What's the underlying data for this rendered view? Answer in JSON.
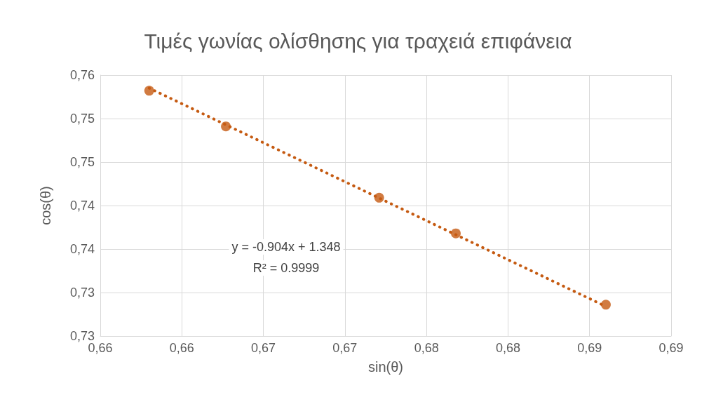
{
  "chart_data": {
    "type": "scatter",
    "title": "Τιμές γωνίας ολίσθησης για τραχειά επιφάνεια",
    "xlabel": "sin(θ)",
    "ylabel": "cos(θ)",
    "series": [
      {
        "color": "#c55a11",
        "x": [
          0.663,
          0.6677,
          0.6771,
          0.6818,
          0.691
        ],
        "values": [
          0.7582,
          0.7541,
          0.7459,
          0.7418,
          0.7336
        ],
        "marker": "circle"
      },
      {
        "type": "line",
        "color": "#c55a11",
        "x": [
          0.663,
          0.691
        ],
        "values": [
          0.7585,
          0.7334
        ],
        "marker": "none",
        "line_style": "dotted"
      }
    ],
    "xlim": [
      0.66,
      0.695
    ],
    "xticks": [
      {
        "value": 0.66,
        "label": "0,66"
      },
      {
        "value": 0.665,
        "label": "0,66"
      },
      {
        "value": 0.67,
        "label": "0,67"
      },
      {
        "value": 0.675,
        "label": "0,67"
      },
      {
        "value": 0.68,
        "label": "0,68"
      },
      {
        "value": 0.685,
        "label": "0,68"
      },
      {
        "value": 0.69,
        "label": "0,69"
      },
      {
        "value": 0.695,
        "label": "0,69"
      }
    ],
    "ylim": [
      0.73,
      0.76
    ],
    "yticks": [
      {
        "value": 0.73,
        "label": "0,73"
      },
      {
        "value": 0.735,
        "label": "0,73"
      },
      {
        "value": 0.74,
        "label": "0,74"
      },
      {
        "value": 0.745,
        "label": "0,74"
      },
      {
        "value": 0.75,
        "label": "0,75"
      },
      {
        "value": 0.755,
        "label": "0,75"
      },
      {
        "value": 0.76,
        "label": "0,76"
      }
    ],
    "annotations": [
      "y = -0.904x + 1.348",
      "R² = 0.9999"
    ],
    "grid": true
  }
}
